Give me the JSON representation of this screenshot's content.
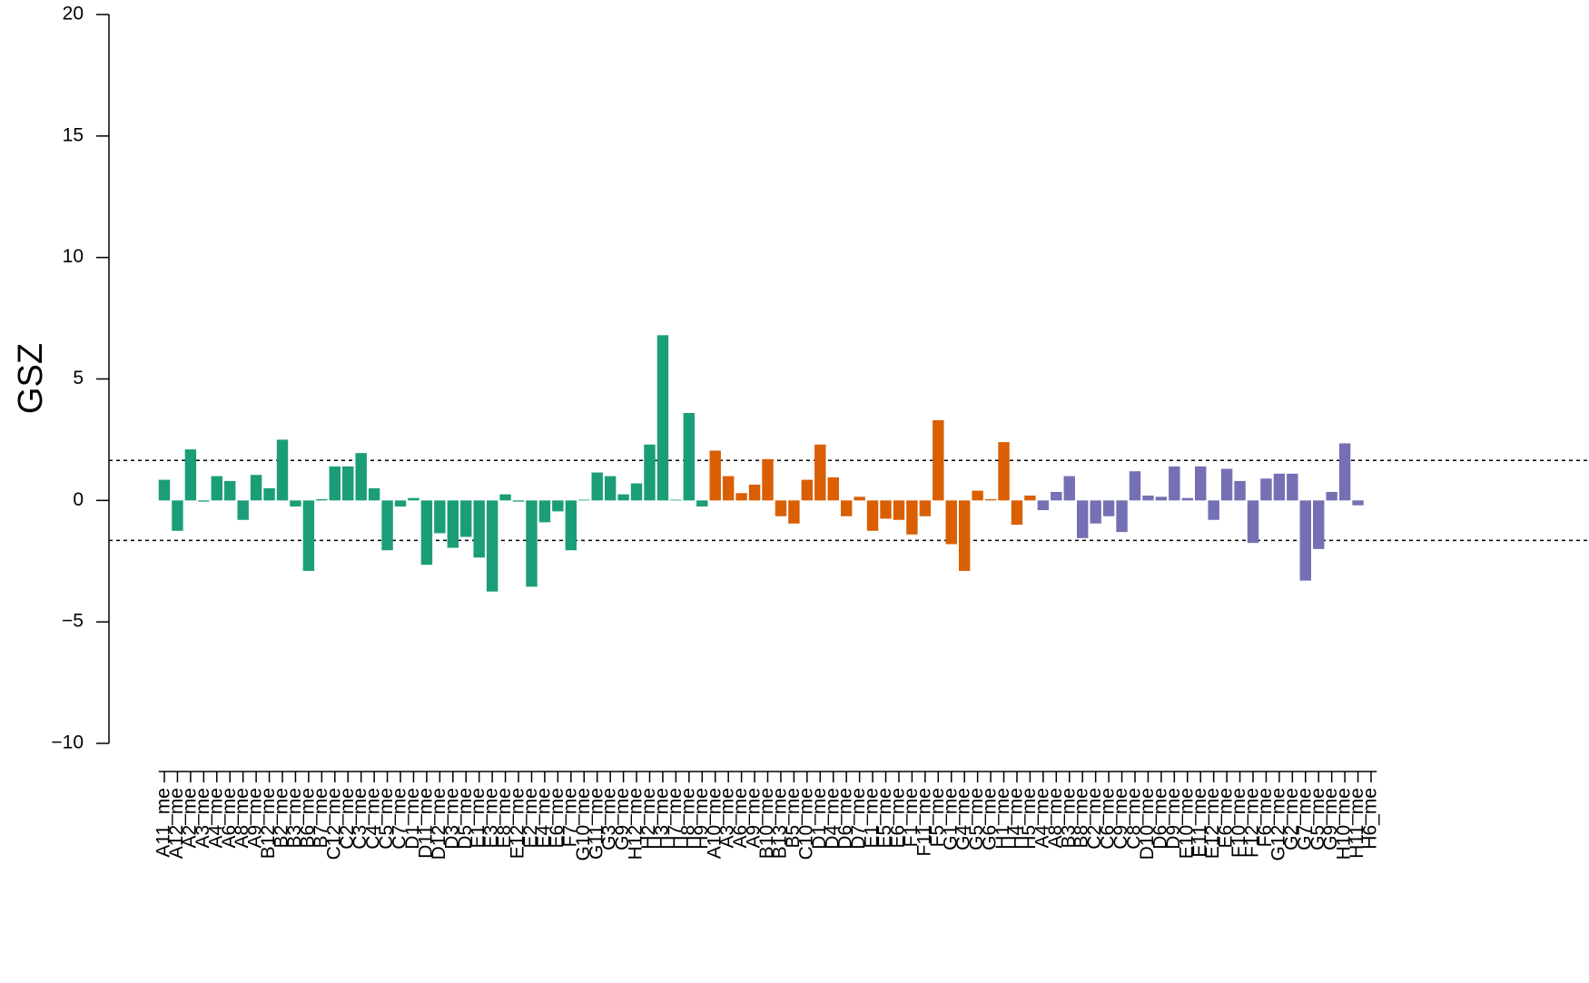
{
  "chart_data": {
    "type": "bar",
    "ylabel": "GSZ",
    "ylim": [
      -10,
      20
    ],
    "yticks": [
      {
        "value": -10,
        "label": "−10"
      },
      {
        "value": -5,
        "label": "−5"
      },
      0,
      5,
      10,
      15,
      20
    ],
    "hlines": [
      1.645,
      -1.645
    ],
    "series": [
      {
        "color": "#1b9e77",
        "categories": [
          "A11_me",
          "A12_me",
          "A2_me",
          "A3_me",
          "A4_me",
          "A6_me",
          "A8_me",
          "A9_me",
          "B12_me",
          "B2_me",
          "B3_me",
          "B6_me",
          "B7_me",
          "C12_me",
          "C2_me",
          "C3_me",
          "C4_me",
          "C5_me",
          "C7_me",
          "D1_me",
          "D11_me",
          "D12_me",
          "D3_me",
          "D5_me",
          "E1_me",
          "E3_me",
          "E8_me",
          "E12_me",
          "E2_me",
          "E4_me",
          "E6_me",
          "F7_me",
          "G10_me",
          "G11_me",
          "G3_me",
          "G9_me",
          "H12_me",
          "H2_me",
          "H3_me",
          "H7_me",
          "H8_me",
          "H9_me"
        ],
        "values": [
          0.85,
          -1.25,
          2.1,
          -0.05,
          1.0,
          0.8,
          -0.8,
          1.05,
          0.5,
          2.5,
          -0.25,
          -2.9,
          0.05,
          1.4,
          1.4,
          1.95,
          0.5,
          -2.05,
          -0.25,
          0.1,
          -2.65,
          -1.35,
          -1.95,
          -1.5,
          -2.35,
          -3.75,
          0.25,
          -0.05,
          -3.55,
          -0.9,
          -0.45,
          -2.05,
          0.03,
          1.15,
          1.0,
          0.25,
          0.7,
          2.3,
          6.8,
          0.03,
          3.6,
          -0.25
        ]
      },
      {
        "color": "#d95f02",
        "categories": [
          "A10_me",
          "A3_me",
          "A6_me",
          "A9_me",
          "B10_me",
          "B13_me",
          "B5_me",
          "C10_me",
          "D1_me",
          "D4_me",
          "D6_me",
          "D7_me",
          "E1_me",
          "E5_me",
          "E6_me",
          "F1_me",
          "F11_me",
          "F5_me",
          "G1_me",
          "G4_me",
          "G5_me",
          "G6_me",
          "H1_me",
          "H4_me",
          "H5_me"
        ],
        "values": [
          2.05,
          1.0,
          0.3,
          0.65,
          1.7,
          -0.65,
          -0.95,
          0.85,
          2.3,
          0.95,
          -0.65,
          0.15,
          -1.25,
          -0.75,
          -0.8,
          -1.4,
          -0.65,
          3.3,
          -1.8,
          -2.9,
          0.4,
          0.05,
          2.4,
          -1.0,
          0.2
        ]
      },
      {
        "color": "#7570b3",
        "categories": [
          "A4_me",
          "A8_me",
          "B3_me",
          "B8_me",
          "C2_me",
          "C6_me",
          "C9_me",
          "C8_me",
          "D10_me",
          "D6_me",
          "D9_me",
          "E10_me",
          "E11_me",
          "E12_me",
          "E6_me",
          "F10_me",
          "F12_me",
          "F6_me",
          "G12_me",
          "G2_me",
          "G7_me",
          "G5_me",
          "G9_me",
          "H10_me",
          "H11_me",
          "H6_me"
        ],
        "values": [
          -0.4,
          0.35,
          1.0,
          -1.55,
          -0.95,
          -0.65,
          -1.3,
          1.2,
          0.2,
          0.15,
          1.4,
          0.1,
          1.4,
          -0.8,
          1.3,
          0.8,
          -1.75,
          0.9,
          1.1,
          1.1,
          -3.3,
          -2.0,
          0.35,
          2.35,
          -0.2,
          0.0
        ]
      }
    ]
  }
}
